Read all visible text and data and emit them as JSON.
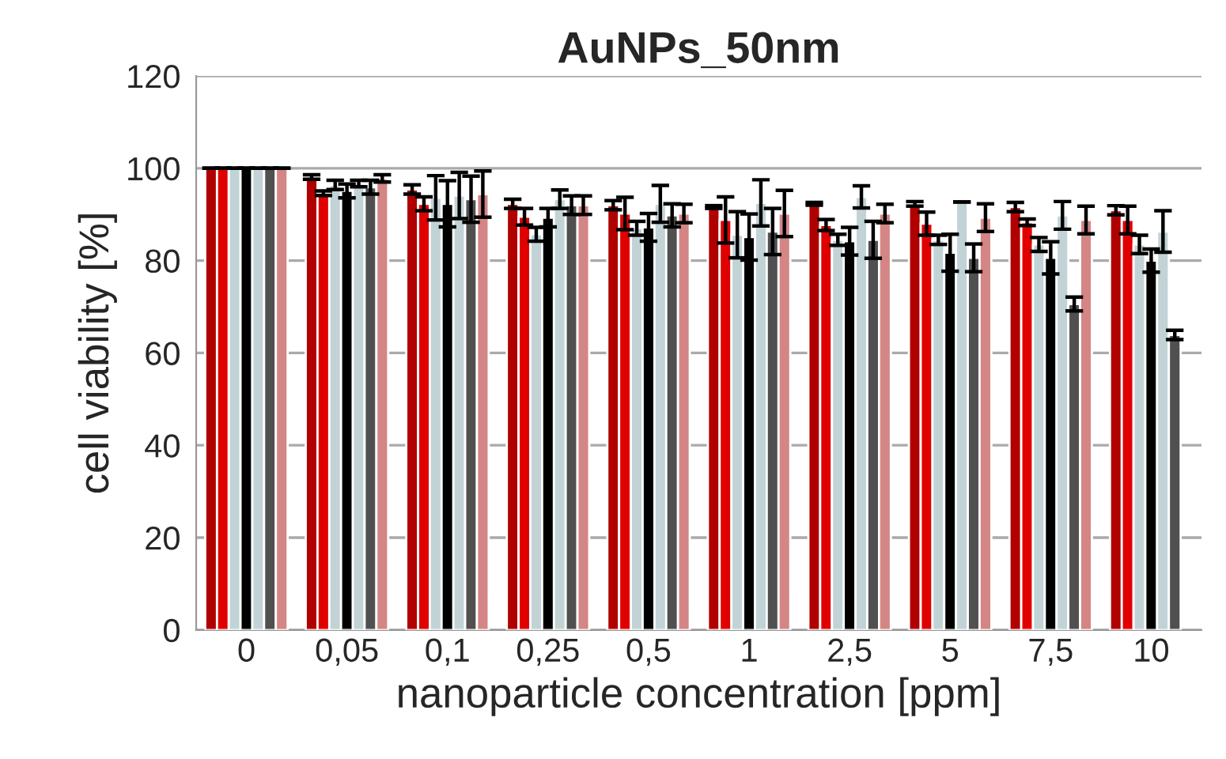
{
  "chart_data": {
    "type": "bar",
    "title": "AuNPs_50nm",
    "xlabel": "nanoparticle concentration [ppm]",
    "ylabel": "cell viability [%]",
    "categories": [
      "0",
      "0,05",
      "0,1",
      "0,25",
      "0,5",
      "1",
      "2,5",
      "5",
      "7,5",
      "10"
    ],
    "ylim": [
      0,
      120
    ],
    "yticks": [
      0,
      20,
      40,
      60,
      80,
      100,
      120
    ],
    "grid": "y",
    "series": [
      {
        "color": "#b00000",
        "values": [
          100,
          98.1,
          95.4,
          92.3,
          92,
          91.6,
          92.3,
          92.3,
          91.6,
          90.9
        ],
        "errors": [
          0,
          0.5,
          1,
          1,
          1,
          0.3,
          0.3,
          0.5,
          1,
          1
        ]
      },
      {
        "color": "#e00000",
        "values": [
          100,
          94.6,
          92.3,
          89.5,
          90.2,
          88.8,
          87.7,
          88,
          88.3,
          88.8
        ],
        "errors": [
          0,
          0.5,
          1.5,
          1.8,
          3.5,
          5,
          1.2,
          2.5,
          0.7,
          3
        ]
      },
      {
        "color": "#c2d3d6",
        "values": [
          100,
          96.4,
          93.6,
          85.7,
          87,
          85.6,
          84.5,
          84.5,
          83.5,
          83.5
        ],
        "errors": [
          0,
          1,
          4.8,
          1.5,
          1.5,
          5,
          1.2,
          1,
          1.5,
          2
        ]
      },
      {
        "color": "#000000",
        "values": [
          100,
          95.1,
          92.3,
          89.3,
          87.2,
          85.1,
          84.2,
          81.7,
          80.6,
          80
        ],
        "errors": [
          0,
          1.5,
          5,
          2,
          3,
          5,
          3,
          4,
          3.5,
          2.5
        ]
      },
      {
        "color": "#c2d3d6",
        "values": [
          100,
          96.7,
          94.1,
          93.3,
          92.3,
          92.5,
          93.8,
          92.7,
          89.8,
          86.3
        ],
        "errors": [
          0,
          0.7,
          5,
          2,
          4,
          5,
          2.4,
          0,
          3,
          4.5
        ]
      },
      {
        "color": "#505050",
        "values": [
          100,
          95.9,
          93.3,
          92,
          89.8,
          86.3,
          84.5,
          80.6,
          70.6,
          63.9
        ],
        "errors": [
          0,
          1.5,
          5,
          2,
          2.5,
          5,
          4,
          3,
          1.5,
          1
        ]
      },
      {
        "color": "#d48585",
        "values": [
          100,
          97.8,
          94.4,
          92,
          90.2,
          90.2,
          90.2,
          89.3,
          88.8,
          null
        ],
        "errors": [
          0,
          0.8,
          5,
          2,
          2,
          5,
          2,
          3,
          3,
          null
        ]
      }
    ]
  }
}
